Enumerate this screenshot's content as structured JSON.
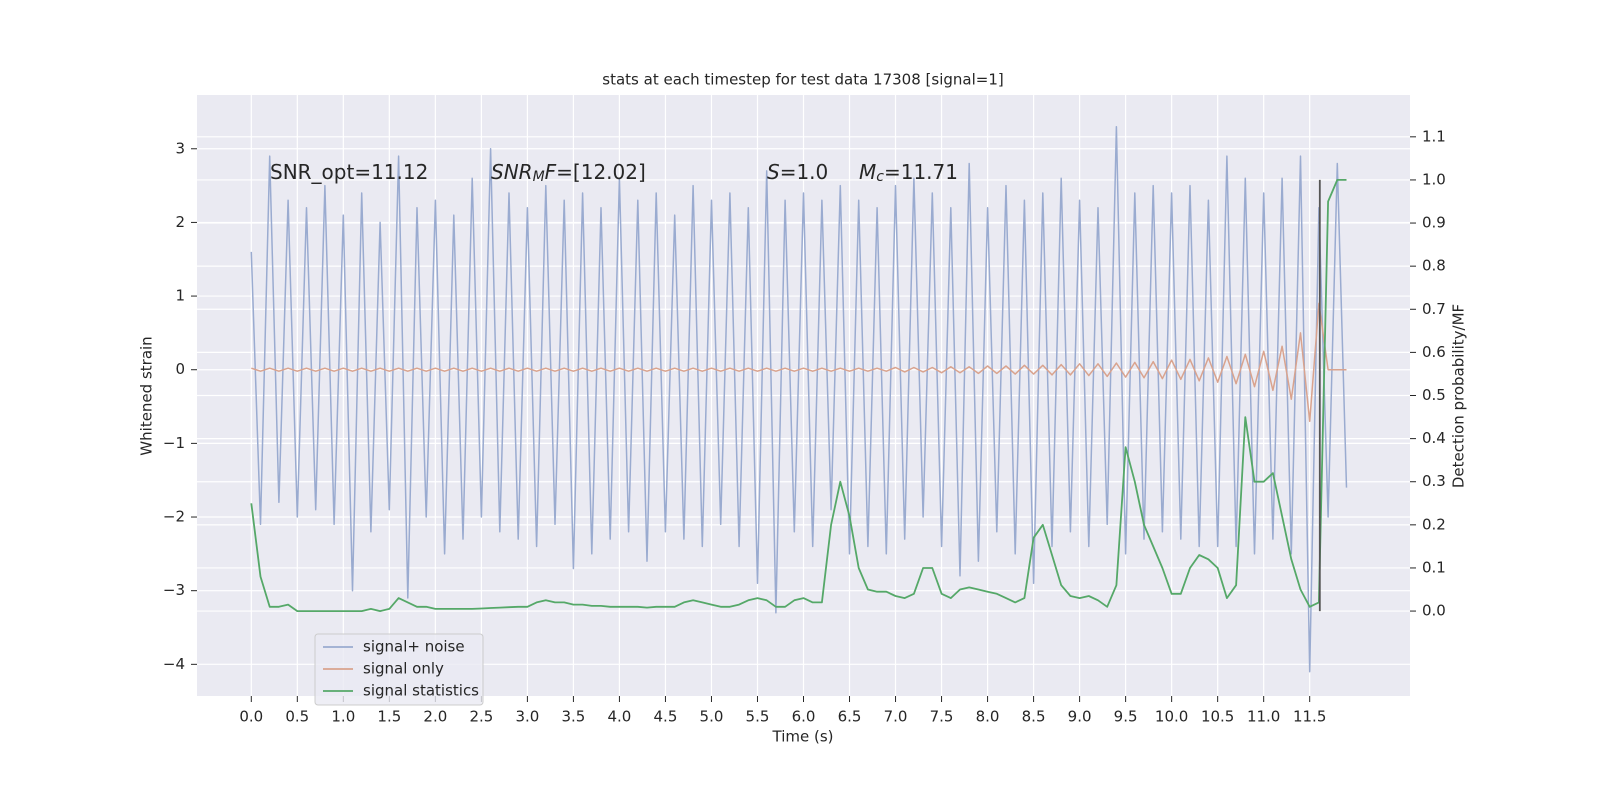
{
  "chart_data": {
    "type": "line",
    "title": "stats at each timestep for test data 17308 [signal=1]",
    "xlabel": "Time (s)",
    "ylabel": "Whitened strain",
    "y2label": "Detection probability/MF",
    "x": [
      0.0,
      0.1,
      0.2,
      0.3,
      0.4,
      0.5,
      0.6,
      0.7,
      0.8,
      0.9,
      1.0,
      1.1,
      1.2,
      1.3,
      1.4,
      1.5,
      1.6,
      1.7,
      1.8,
      1.9,
      2.0,
      2.1,
      2.2,
      2.3,
      2.4,
      2.5,
      2.6,
      2.7,
      2.8,
      2.9,
      3.0,
      3.1,
      3.2,
      3.3,
      3.4,
      3.5,
      3.6,
      3.7,
      3.8,
      3.9,
      4.0,
      4.1,
      4.2,
      4.3,
      4.4,
      4.5,
      4.6,
      4.7,
      4.8,
      4.9,
      5.0,
      5.1,
      5.2,
      5.3,
      5.4,
      5.5,
      5.6,
      5.7,
      5.8,
      5.9,
      6.0,
      6.1,
      6.2,
      6.3,
      6.4,
      6.5,
      6.6,
      6.7,
      6.8,
      6.9,
      7.0,
      7.1,
      7.2,
      7.3,
      7.4,
      7.5,
      7.6,
      7.7,
      7.8,
      7.9,
      8.0,
      8.1,
      8.2,
      8.3,
      8.4,
      8.5,
      8.6,
      8.7,
      8.8,
      8.9,
      9.0,
      9.1,
      9.2,
      9.3,
      9.4,
      9.5,
      9.6,
      9.7,
      9.8,
      9.9,
      10.0,
      10.1,
      10.2,
      10.3,
      10.4,
      10.5,
      10.6,
      10.7,
      10.8,
      10.9,
      11.0,
      11.1,
      11.2,
      11.3,
      11.4,
      11.5,
      11.6,
      11.7,
      11.8,
      11.9
    ],
    "series": [
      {
        "name": "signal+ noise",
        "color": "#9aabd0",
        "values": [
          1.6,
          -2.1,
          2.9,
          -1.8,
          2.3,
          -2.0,
          2.2,
          -1.9,
          2.5,
          -2.1,
          2.1,
          -3.0,
          2.4,
          -2.2,
          2.0,
          -1.9,
          2.9,
          -3.1,
          2.2,
          -2.0,
          2.3,
          -2.5,
          2.1,
          -2.3,
          2.6,
          -2.0,
          3.0,
          -2.2,
          2.4,
          -2.3,
          2.2,
          -2.4,
          2.5,
          -2.1,
          2.3,
          -2.7,
          2.4,
          -2.5,
          2.2,
          -2.3,
          2.6,
          -2.2,
          2.3,
          -2.6,
          2.4,
          -2.2,
          2.1,
          -2.3,
          2.5,
          -2.4,
          2.3,
          -2.1,
          2.4,
          -2.4,
          2.2,
          -2.9,
          2.7,
          -3.3,
          2.3,
          -2.2,
          2.4,
          -2.4,
          2.3,
          -1.9,
          2.5,
          -2.5,
          2.3,
          -2.4,
          2.2,
          -2.5,
          2.5,
          -2.3,
          2.6,
          -2.0,
          2.4,
          -2.4,
          2.2,
          -2.8,
          2.8,
          -2.6,
          2.2,
          -2.2,
          2.5,
          -2.5,
          2.3,
          -2.9,
          2.4,
          -2.4,
          2.6,
          -2.2,
          2.3,
          -2.4,
          2.2,
          -2.1,
          3.3,
          -2.5,
          2.4,
          -2.3,
          2.5,
          -2.2,
          2.4,
          -2.3,
          2.5,
          -2.4,
          2.3,
          -2.4,
          2.9,
          -2.4,
          2.6,
          -2.5,
          2.4,
          -2.3,
          2.6,
          -2.5,
          2.9,
          -4.1,
          2.2,
          -2.0,
          2.8,
          -1.6
        ]
      },
      {
        "name": "signal only",
        "color": "#d9a38e",
        "values": [
          0.02,
          -0.02,
          0.02,
          -0.02,
          0.02,
          -0.02,
          0.02,
          -0.02,
          0.02,
          -0.02,
          0.02,
          -0.02,
          0.02,
          -0.02,
          0.02,
          -0.02,
          0.02,
          -0.02,
          0.02,
          -0.02,
          0.02,
          -0.02,
          0.02,
          -0.02,
          0.02,
          -0.02,
          0.02,
          -0.02,
          0.02,
          -0.02,
          0.02,
          -0.02,
          0.02,
          -0.02,
          0.02,
          -0.02,
          0.02,
          -0.02,
          0.02,
          -0.02,
          0.02,
          -0.02,
          0.02,
          -0.02,
          0.02,
          -0.02,
          0.02,
          -0.02,
          0.02,
          -0.02,
          0.02,
          -0.02,
          0.02,
          -0.02,
          0.02,
          -0.02,
          0.02,
          -0.02,
          0.02,
          -0.02,
          0.02,
          -0.02,
          0.02,
          -0.02,
          0.02,
          -0.02,
          0.02,
          -0.02,
          0.02,
          -0.02,
          0.03,
          -0.03,
          0.03,
          -0.03,
          0.03,
          -0.04,
          0.04,
          -0.04,
          0.04,
          -0.05,
          0.05,
          -0.05,
          0.05,
          -0.06,
          0.06,
          -0.06,
          0.06,
          -0.07,
          0.07,
          -0.07,
          0.08,
          -0.08,
          0.08,
          -0.09,
          0.09,
          -0.1,
          0.1,
          -0.11,
          0.11,
          -0.12,
          0.13,
          -0.13,
          0.14,
          -0.15,
          0.16,
          -0.17,
          0.18,
          -0.19,
          0.21,
          -0.23,
          0.25,
          -0.28,
          0.32,
          -0.4,
          0.5,
          -0.7,
          0.9,
          0.0,
          0.0,
          0.0
        ]
      },
      {
        "name": "signal statistics",
        "color": "#55a868",
        "axis": "y2",
        "values": [
          0.25,
          0.08,
          0.01,
          0.01,
          0.015,
          0.0,
          0.0,
          0.0,
          0.0,
          0.0,
          0.0,
          0.0,
          0.0,
          0.005,
          0.0,
          0.005,
          0.03,
          0.02,
          0.01,
          0.01,
          0.005,
          0.005,
          0.005,
          0.005,
          0.005,
          0.006,
          0.007,
          0.008,
          0.009,
          0.01,
          0.01,
          0.02,
          0.025,
          0.02,
          0.02,
          0.015,
          0.015,
          0.012,
          0.012,
          0.01,
          0.01,
          0.01,
          0.01,
          0.008,
          0.01,
          0.01,
          0.01,
          0.02,
          0.025,
          0.02,
          0.015,
          0.01,
          0.01,
          0.015,
          0.025,
          0.03,
          0.025,
          0.01,
          0.01,
          0.025,
          0.03,
          0.02,
          0.02,
          0.2,
          0.3,
          0.22,
          0.1,
          0.05,
          0.045,
          0.045,
          0.035,
          0.03,
          0.04,
          0.1,
          0.1,
          0.04,
          0.03,
          0.05,
          0.055,
          0.05,
          0.045,
          0.04,
          0.03,
          0.02,
          0.03,
          0.17,
          0.2,
          0.13,
          0.06,
          0.035,
          0.03,
          0.035,
          0.025,
          0.01,
          0.06,
          0.38,
          0.3,
          0.2,
          0.15,
          0.1,
          0.04,
          0.04,
          0.1,
          0.13,
          0.12,
          0.1,
          0.03,
          0.06,
          0.45,
          0.3,
          0.3,
          0.32,
          0.22,
          0.12,
          0.05,
          0.01,
          0.02,
          0.95,
          1.0,
          1.0
        ]
      }
    ],
    "vline": {
      "x": 11.61,
      "ymin": 0.0,
      "ymax": 1.0,
      "axis": "y2",
      "color": "#555555"
    },
    "annotations": [
      [
        {
          "text": "SNR_opt=11.12"
        }
      ],
      [
        {
          "text": "SNR",
          "italic": true
        },
        {
          "text": "M",
          "italic": true,
          "sub": true
        },
        {
          "text": "F",
          "italic": true
        },
        {
          "text": "=[12.02]"
        }
      ],
      [
        {
          "text": "S",
          "italic": true
        },
        {
          "text": "=1.0"
        }
      ],
      [
        {
          "text": "M",
          "italic": true
        },
        {
          "text": "c",
          "italic": true,
          "sub": true
        },
        {
          "text": "=11.71"
        }
      ]
    ],
    "xlim": [
      -0.59,
      12.59
    ],
    "ylim": [
      -4.43,
      3.73
    ],
    "y2lim": [
      -0.197,
      1.197
    ],
    "xticks": [
      {
        "value": 0,
        "label": "0.0"
      },
      {
        "value": 0.5,
        "label": "0.5"
      },
      {
        "value": 1,
        "label": "1.0"
      },
      {
        "value": 1.5,
        "label": "1.5"
      },
      {
        "value": 2,
        "label": "2.0"
      },
      {
        "value": 2.5,
        "label": "2.5"
      },
      {
        "value": 3,
        "label": "3.0"
      },
      {
        "value": 3.5,
        "label": "3.5"
      },
      {
        "value": 4,
        "label": "4.0"
      },
      {
        "value": 4.5,
        "label": "4.5"
      },
      {
        "value": 5,
        "label": "5.0"
      },
      {
        "value": 5.5,
        "label": "5.5"
      },
      {
        "value": 6,
        "label": "6.0"
      },
      {
        "value": 6.5,
        "label": "6.5"
      },
      {
        "value": 7,
        "label": "7.0"
      },
      {
        "value": 7.5,
        "label": "7.5"
      },
      {
        "value": 8,
        "label": "8.0"
      },
      {
        "value": 8.5,
        "label": "8.5"
      },
      {
        "value": 9,
        "label": "9.0"
      },
      {
        "value": 9.5,
        "label": "9.5"
      },
      {
        "value": 10,
        "label": "10.0"
      },
      {
        "value": 10.5,
        "label": "10.5"
      },
      {
        "value": 11,
        "label": "11.0"
      },
      {
        "value": 11.5,
        "label": "11.5"
      }
    ],
    "yticks": [
      {
        "value": -4,
        "label": "−4"
      },
      {
        "value": -3,
        "label": "−3"
      },
      {
        "value": -2,
        "label": "−2"
      },
      {
        "value": -1,
        "label": "−1"
      },
      0,
      1,
      2,
      3
    ],
    "y2ticks": [
      {
        "value": 0,
        "label": "0.0"
      },
      {
        "value": 0.1,
        "label": "0.1"
      },
      {
        "value": 0.2,
        "label": "0.2"
      },
      {
        "value": 0.3,
        "label": "0.3"
      },
      {
        "value": 0.4,
        "label": "0.4"
      },
      {
        "value": 0.5,
        "label": "0.5"
      },
      {
        "value": 0.6,
        "label": "0.6"
      },
      {
        "value": 0.7,
        "label": "0.7"
      },
      {
        "value": 0.8,
        "label": "0.8"
      },
      {
        "value": 0.9,
        "label": "0.9"
      },
      {
        "value": 1,
        "label": "1.0"
      },
      {
        "value": 1.1,
        "label": "1.1"
      }
    ],
    "grid": true,
    "legend": "lower left",
    "background": "#eaeaf2"
  }
}
